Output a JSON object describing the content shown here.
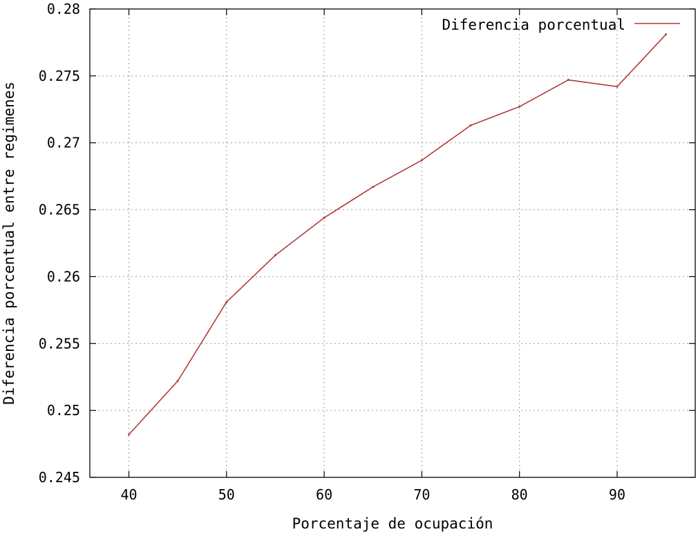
{
  "chart_data": {
    "type": "line",
    "title": "",
    "xlabel": "Porcentaje de ocupación",
    "ylabel": "Diferencia porcentual entre regimenes",
    "xlim": [
      36,
      98
    ],
    "ylim": [
      0.245,
      0.28
    ],
    "x_ticks": [
      40,
      50,
      60,
      70,
      80,
      90
    ],
    "x_tick_labels": [
      "40",
      "50",
      "60",
      "70",
      "80",
      "90"
    ],
    "y_ticks": [
      0.245,
      0.25,
      0.255,
      0.26,
      0.265,
      0.27,
      0.275,
      0.28
    ],
    "y_tick_labels": [
      "0.245",
      "0.25",
      "0.255",
      "0.26",
      "0.265",
      "0.27",
      "0.275",
      "0.28"
    ],
    "grid": true,
    "legend_position": "top-right",
    "series": [
      {
        "name": "Diferencia porcentual",
        "color": "#b03a3a",
        "x": [
          40,
          45,
          50,
          55,
          60,
          65,
          70,
          75,
          80,
          85,
          90,
          95
        ],
        "y": [
          0.2482,
          0.2522,
          0.2581,
          0.2616,
          0.2644,
          0.2667,
          0.2687,
          0.2713,
          0.2727,
          0.2747,
          0.2742,
          0.2781
        ]
      }
    ]
  }
}
